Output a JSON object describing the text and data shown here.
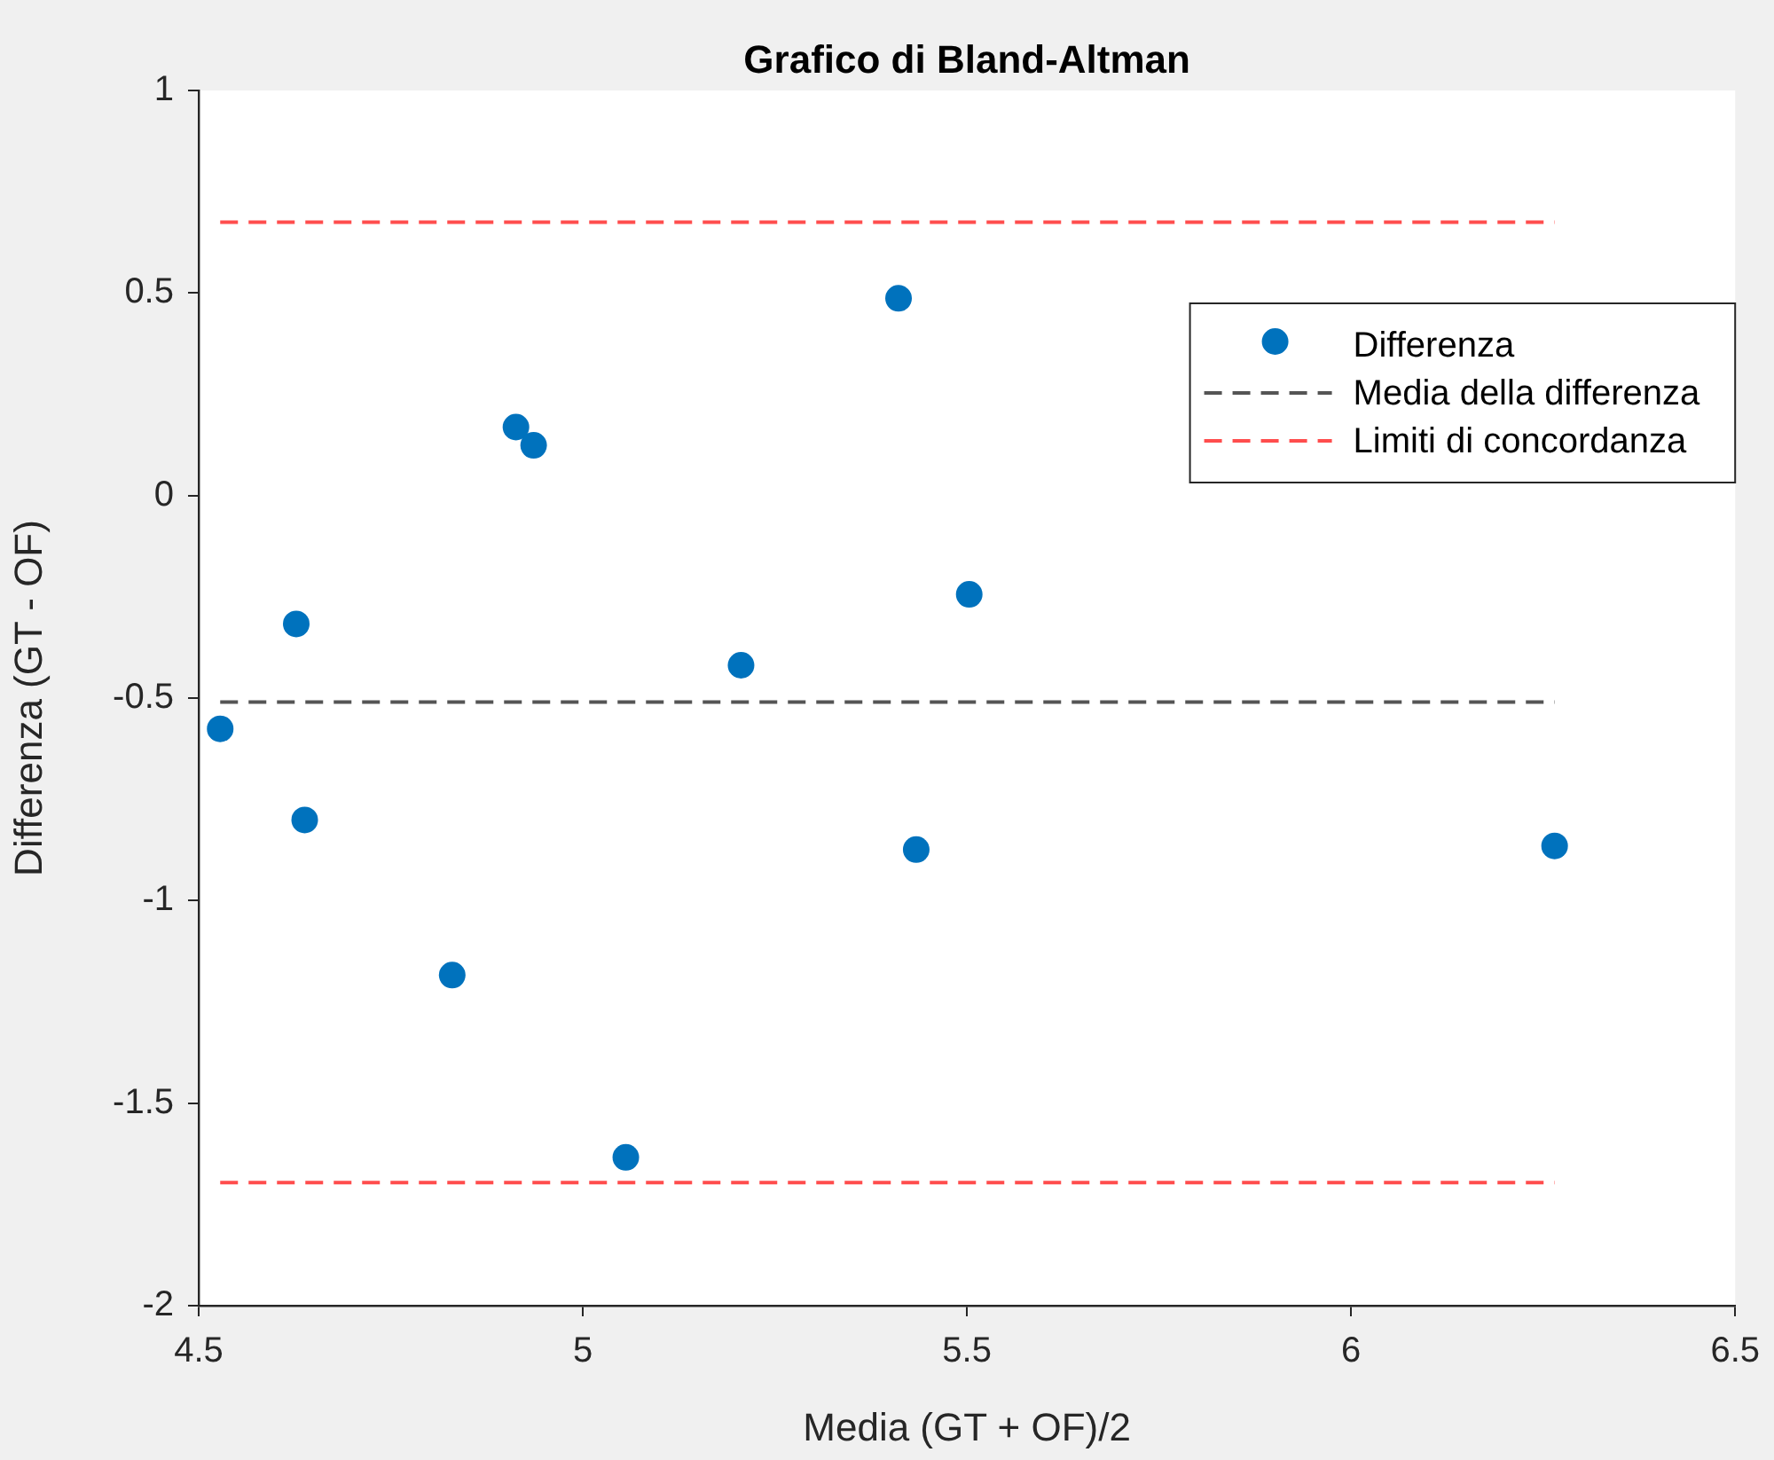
{
  "chart_data": {
    "type": "scatter",
    "title": "Grafico di Bland-Altman",
    "xlabel": "Media (GT + OF)/2",
    "ylabel": "Differenza (GT - OF)",
    "xlim": [
      4.5,
      6.5
    ],
    "xticks": [
      4.5,
      5,
      5.5,
      6,
      6.5
    ],
    "ylim": [
      -2,
      1
    ],
    "yticks": [
      -2,
      -1.5,
      -1,
      -0.5,
      0,
      0.5,
      1
    ],
    "grid": false,
    "legend": "top right",
    "series": [
      {
        "name": "Differenza",
        "marker": "circle",
        "color": "#0072bd",
        "x": [
          4.528,
          4.627,
          4.638,
          4.83,
          4.913,
          4.936,
          5.056,
          5.206,
          5.411,
          5.434,
          5.503,
          6.265
        ],
        "values": [
          -0.576,
          -0.317,
          -0.801,
          -1.184,
          0.169,
          0.124,
          -1.634,
          -0.419,
          0.487,
          -0.874,
          -0.244,
          -0.865
        ]
      },
      {
        "name": "Media della differenza",
        "type": "line",
        "line_style": "dashed",
        "color": "#555555",
        "x": [
          4.528,
          6.265
        ],
        "values": [
          -0.51,
          -0.51
        ]
      },
      {
        "name": "Limiti di concordanza",
        "type": "line",
        "line_style": "dashed",
        "color": "#ff4d4d",
        "x": [
          4.528,
          6.265
        ],
        "values": [
          0.675,
          0.675
        ]
      },
      {
        "type": "line",
        "line_style": "dashed",
        "color": "#ff4d4d",
        "x": [
          4.528,
          6.265
        ],
        "values": [
          -1.696,
          -1.696
        ]
      }
    ]
  }
}
